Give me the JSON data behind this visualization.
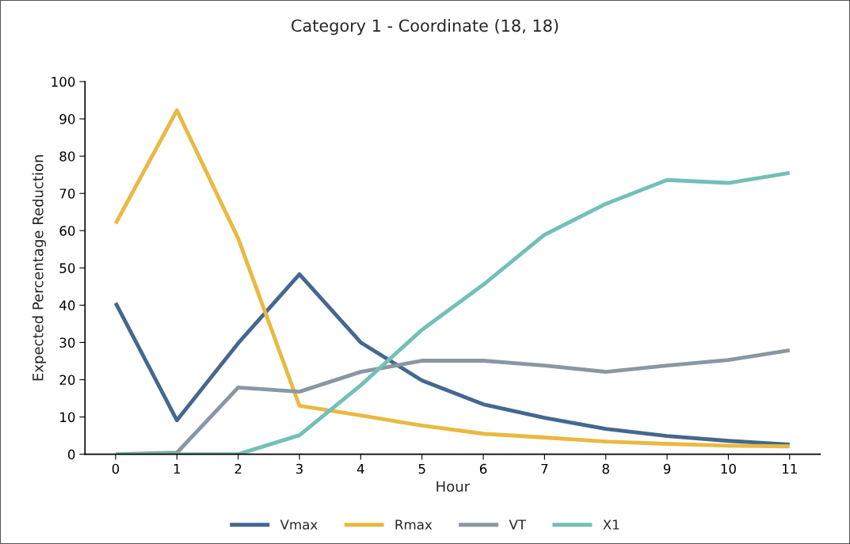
{
  "chart_data": {
    "type": "line",
    "title": "Category 1 - Coordinate (18, 18)",
    "xlabel": "Hour",
    "ylabel": "Expected Percentage Reduction",
    "categories": [
      "0",
      "1",
      "2",
      "3",
      "4",
      "5",
      "6",
      "7",
      "8",
      "9",
      "10",
      "11"
    ],
    "series": [
      {
        "name": "Vmax",
        "color": "#44688f",
        "values": [
          40.6,
          9.1,
          29.8,
          48.3,
          30,
          19.8,
          13.4,
          9.8,
          6.8,
          4.9,
          3.6,
          2.6
        ]
      },
      {
        "name": "Rmax",
        "color": "#e9b941",
        "values": [
          61.9,
          92.3,
          57.9,
          13,
          10.4,
          7.7,
          5.5,
          4.5,
          3.4,
          2.8,
          2.3,
          2.1
        ]
      },
      {
        "name": "VT",
        "color": "#8a96a3",
        "values": [
          0,
          0.4,
          17.9,
          16.8,
          22.1,
          25.1,
          25.1,
          23.8,
          22.1,
          23.8,
          25.3,
          27.9
        ]
      },
      {
        "name": "X1",
        "color": "#72c0b6",
        "values": [
          0,
          0,
          0,
          5.1,
          18.5,
          33.4,
          45.5,
          58.9,
          67.2,
          73.6,
          72.8,
          75.5
        ]
      }
    ],
    "ylim": [
      0,
      100
    ],
    "yticks": [
      0,
      10,
      20,
      30,
      40,
      50,
      60,
      70,
      80,
      90,
      100
    ],
    "grid": false,
    "legend": "bottom",
    "marker": "none",
    "line_style": "solid"
  }
}
